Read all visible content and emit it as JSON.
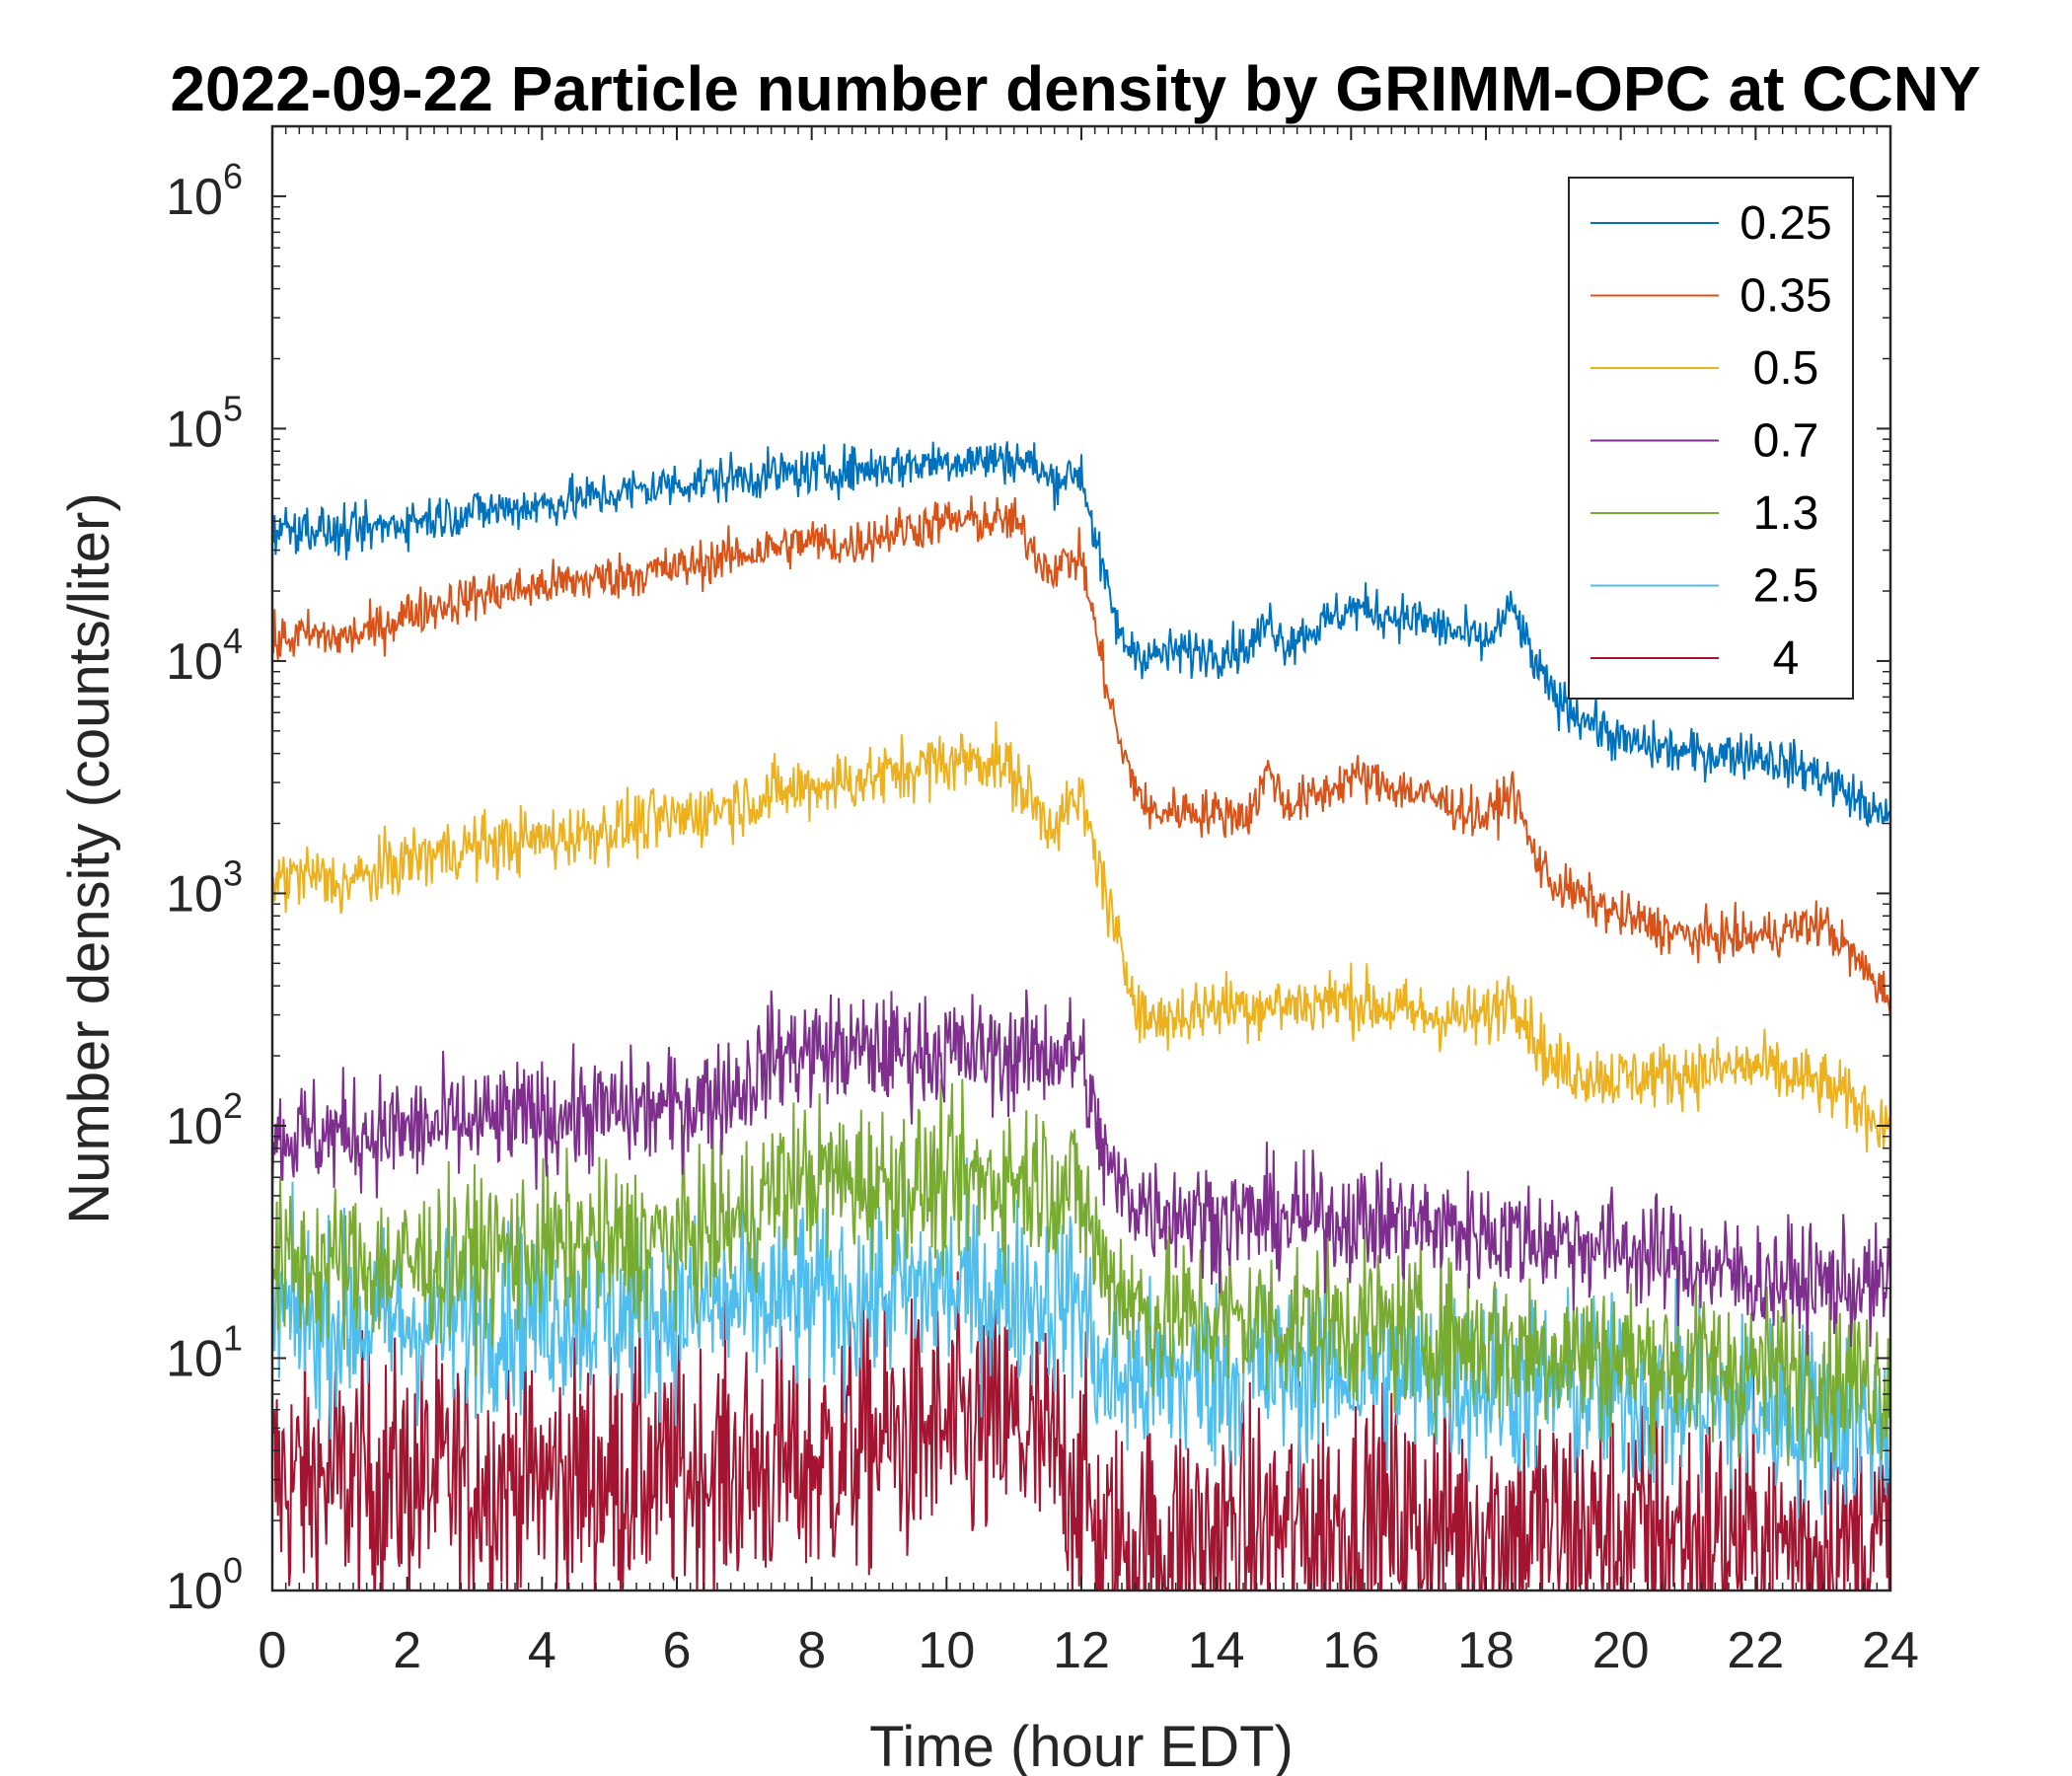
{
  "chart_data": {
    "type": "line",
    "title": "2022-09-22 Particle number density by GRIMM-OPC at CCNY",
    "xlabel": "Time (hour EDT)",
    "ylabel": "Number density (counts/liter)",
    "xlim": [
      0,
      24
    ],
    "ylim": [
      1,
      2000000
    ],
    "yscale": "log",
    "xticks": [
      "0",
      "2",
      "4",
      "6",
      "8",
      "10",
      "12",
      "14",
      "16",
      "18",
      "20",
      "22",
      "24"
    ],
    "yticks": [
      {
        "base": "10",
        "exp": "0"
      },
      {
        "base": "10",
        "exp": "1"
      },
      {
        "base": "10",
        "exp": "2"
      },
      {
        "base": "10",
        "exp": "3"
      },
      {
        "base": "10",
        "exp": "4"
      },
      {
        "base": "10",
        "exp": "5"
      },
      {
        "base": "10",
        "exp": "6"
      }
    ],
    "grid": false,
    "legend_position": "top-right",
    "series": [
      {
        "name": "0.25",
        "color": "#0072BD",
        "noise": 0.05,
        "x": [
          0,
          0.5,
          1,
          1.5,
          2,
          3,
          4,
          5,
          6,
          7,
          8,
          9,
          10,
          11,
          11.3,
          11.5,
          12,
          12.3,
          12.6,
          13,
          13.5,
          14,
          14.5,
          14.8,
          15,
          15.5,
          16,
          17,
          18,
          18.4,
          18.7,
          19,
          20,
          21,
          22,
          23,
          24
        ],
        "y": [
          37000,
          38000,
          35000,
          37000,
          40000,
          44000,
          47000,
          52000,
          58000,
          62000,
          65000,
          68000,
          73000,
          74000,
          70000,
          60000,
          65000,
          25000,
          12000,
          10500,
          11000,
          11000,
          11500,
          15000,
          12000,
          14000,
          17000,
          15000,
          12000,
          17000,
          10000,
          7000,
          4500,
          4000,
          4000,
          3200,
          2000
        ]
      },
      {
        "name": "0.35",
        "color": "#D95319",
        "noise": 0.05,
        "x": [
          0,
          0.5,
          1,
          1.5,
          2,
          3,
          4,
          5,
          6,
          7,
          8,
          8.5,
          9,
          10,
          11,
          11.5,
          12,
          12.3,
          12.6,
          13,
          13.5,
          14,
          14.5,
          14.8,
          15,
          15.5,
          16,
          17,
          18,
          18.4,
          18.7,
          19,
          20,
          21,
          22,
          23,
          24
        ],
        "y": [
          12000,
          13000,
          12500,
          13500,
          16000,
          19000,
          21000,
          23000,
          25000,
          29000,
          33000,
          31000,
          35000,
          40000,
          40000,
          25000,
          28000,
          10000,
          4000,
          2200,
          2300,
          2200,
          2200,
          3500,
          2400,
          2600,
          3200,
          2700,
          2100,
          2800,
          1500,
          1100,
          800,
          650,
          650,
          750,
          350
        ]
      },
      {
        "name": "0.5",
        "color": "#EDB120",
        "noise": 0.07,
        "x": [
          0,
          0.5,
          1,
          1.5,
          2,
          3,
          4,
          5,
          6,
          7,
          8,
          9,
          10,
          10.7,
          11,
          11.5,
          12,
          12.3,
          12.6,
          13,
          13.5,
          14,
          15,
          16,
          17,
          18,
          18.4,
          18.7,
          19,
          20,
          21,
          22,
          23,
          24
        ],
        "y": [
          1150,
          1200,
          1100,
          1200,
          1400,
          1600,
          1700,
          1900,
          2100,
          2500,
          2900,
          3200,
          3700,
          3800,
          3200,
          2000,
          2500,
          1200,
          500,
          280,
          300,
          330,
          330,
          350,
          300,
          290,
          380,
          250,
          180,
          160,
          170,
          180,
          150,
          100
        ]
      },
      {
        "name": "0.7",
        "color": "#7E2F8E",
        "noise": 0.12,
        "x": [
          0,
          2,
          4,
          6,
          7,
          7.4,
          8,
          9,
          10,
          11,
          11.5,
          12,
          12.2,
          12.5,
          13,
          14,
          16,
          18,
          20,
          22,
          24
        ],
        "y": [
          90,
          95,
          110,
          120,
          150,
          200,
          210,
          210,
          210,
          200,
          210,
          200,
          100,
          55,
          45,
          40,
          40,
          35,
          30,
          22,
          20
        ]
      },
      {
        "name": "1.3",
        "color": "#77AC30",
        "noise": 0.17,
        "x": [
          0,
          2,
          4,
          6,
          7,
          7.5,
          8,
          10,
          11,
          11.5,
          12,
          12.3,
          13,
          16,
          20,
          24
        ],
        "y": [
          25,
          25,
          30,
          32,
          40,
          55,
          60,
          55,
          60,
          60,
          50,
          25,
          15,
          14,
          10,
          8
        ]
      },
      {
        "name": "2.5",
        "color": "#4DBEEE",
        "noise": 0.2,
        "x": [
          0,
          2,
          4,
          6,
          8,
          10,
          12,
          12.3,
          16,
          20,
          24
        ],
        "y": [
          15,
          14,
          16,
          16,
          18,
          20,
          18,
          8,
          9,
          7,
          5
        ]
      },
      {
        "name": "4",
        "color": "#A2142F",
        "noise": 0.28,
        "x": [
          0,
          4,
          8,
          9,
          11,
          12,
          12.3,
          16,
          20,
          24
        ],
        "y": [
          3,
          3,
          3.5,
          4.5,
          5,
          3,
          1.5,
          2,
          1.8,
          1.5
        ]
      }
    ]
  }
}
